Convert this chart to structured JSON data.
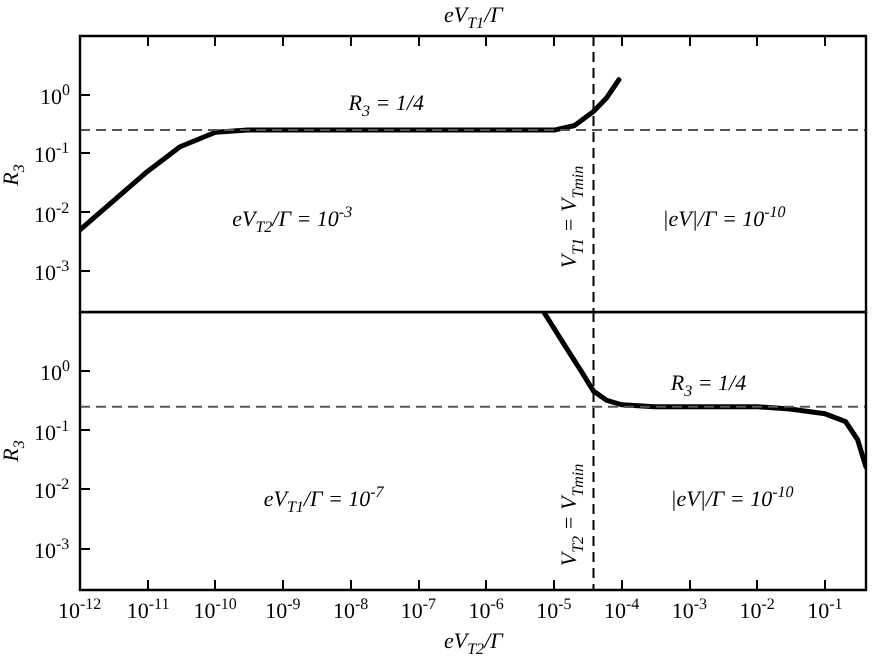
{
  "chart_data": [
    {
      "type": "line",
      "xlabel": "eV$_{T1}$/Γ",
      "ylabel": "R$_{3}$",
      "log": "xy",
      "xlim": [
        1e-12,
        0.4
      ],
      "ylim": [
        0.0002,
        10
      ],
      "tick_labels": "y",
      "grid": false,
      "legend": false,
      "line_style": "solid",
      "marker": "none",
      "yticks": [
        {
          "value": 0.001,
          "label": "10$^{-3}$"
        },
        {
          "value": 0.01,
          "label": "10$^{-2}$"
        },
        {
          "value": 0.1,
          "label": "10$^{-1}$"
        },
        {
          "value": 1,
          "label": "10$^{0}$"
        }
      ],
      "xticks": [
        {
          "value": 1e-12,
          "label": null
        },
        {
          "value": 1e-11,
          "label": null
        },
        {
          "value": 1e-10,
          "label": null
        },
        {
          "value": 1e-09,
          "label": null
        },
        {
          "value": 1e-08,
          "label": null
        },
        {
          "value": 1e-07,
          "label": null
        },
        {
          "value": 1e-06,
          "label": null
        },
        {
          "value": 1e-05,
          "label": null
        },
        {
          "value": 0.0001,
          "label": null
        },
        {
          "value": 0.001,
          "label": null
        },
        {
          "value": 0.01,
          "label": null
        },
        {
          "value": 0.1,
          "label": null
        }
      ],
      "series": [
        {
          "color": "#000000",
          "x": [
            1e-12,
            1e-11,
            3e-11,
            1e-10,
            3e-10,
            1e-09,
            1e-07,
            1e-05,
            2e-05,
            3.8e-05,
            6e-05,
            9e-05
          ],
          "values": [
            0.005,
            0.05,
            0.13,
            0.23,
            0.25,
            0.25,
            0.25,
            0.25,
            0.3,
            0.52,
            0.9,
            1.8
          ]
        }
      ],
      "ref_lines": [
        {
          "axis": "y",
          "value": 0.25,
          "color": "#555555",
          "line_style": "dashed"
        },
        {
          "axis": "x",
          "value": 3.8e-05,
          "color": "#000000",
          "line_style": "dashed"
        }
      ],
      "annotations": [
        "R$_{3}$ = 1/4",
        {
          "text": "V$_{T1}$ = V$_{Tmin}$",
          "x": 3.8e-05,
          "y": 0.008
        },
        "eV$_{T2}$/Γ = 10$^{-3}$",
        "|eV|/Γ = 10$^{-10}$"
      ]
    },
    {
      "type": "line",
      "xlabel": "eV$_{T2}$/Γ",
      "ylabel": "R$_{3}$",
      "log": "xy",
      "xlim": [
        1e-12,
        0.4
      ],
      "ylim": [
        0.0002,
        10
      ],
      "grid": false,
      "legend": false,
      "line_style": "solid",
      "marker": "none",
      "yticks": [
        {
          "value": 0.001,
          "label": "10$^{-3}$"
        },
        {
          "value": 0.01,
          "label": "10$^{-2}$"
        },
        {
          "value": 0.1,
          "label": "10$^{-1}$"
        },
        {
          "value": 1,
          "label": "10$^{0}$"
        }
      ],
      "xticks": [
        {
          "value": 1e-12,
          "label": "10$^{-12}$"
        },
        {
          "value": 1e-11,
          "label": "10$^{-11}$"
        },
        {
          "value": 1e-10,
          "label": "10$^{-10}$"
        },
        {
          "value": 1e-09,
          "label": "10$^{-9}$"
        },
        {
          "value": 1e-08,
          "label": "10$^{-8}$"
        },
        {
          "value": 1e-07,
          "label": "10$^{-7}$"
        },
        {
          "value": 1e-06,
          "label": "10$^{-6}$"
        },
        {
          "value": 1e-05,
          "label": "10$^{-5}$"
        },
        {
          "value": 0.0001,
          "label": "10$^{-4}$"
        },
        {
          "value": 0.001,
          "label": "10$^{-3}$"
        },
        {
          "value": 0.01,
          "label": "10$^{-2}$"
        },
        {
          "value": 0.1,
          "label": "10$^{-1}$"
        }
      ],
      "series": [
        {
          "color": "#000000",
          "x": [
            7e-06,
            1.5e-05,
            2.5e-05,
            3.8e-05,
            6e-05,
            0.0001,
            0.0003,
            0.001,
            0.01,
            0.03,
            0.1,
            0.2,
            0.3,
            0.4
          ],
          "values": [
            10,
            2.5,
            1,
            0.46,
            0.32,
            0.27,
            0.25,
            0.25,
            0.25,
            0.23,
            0.19,
            0.14,
            0.07,
            0.024
          ]
        }
      ],
      "ref_lines": [
        {
          "axis": "y",
          "value": 0.25,
          "color": "#555555",
          "line_style": "dashed"
        },
        {
          "axis": "x",
          "value": 3.8e-05,
          "color": "#000000",
          "line_style": "dashed"
        }
      ],
      "annotations": [
        "R$_{3}$ = 1/4",
        {
          "text": "V$_{T2}$ = V$_{Tmin}$",
          "x": 3.8e-05,
          "y": 0.0036
        },
        "eV$_{T1}$/Γ = 10$^{-7}$",
        "|eV|/Γ = 10$^{-10}$"
      ]
    }
  ]
}
